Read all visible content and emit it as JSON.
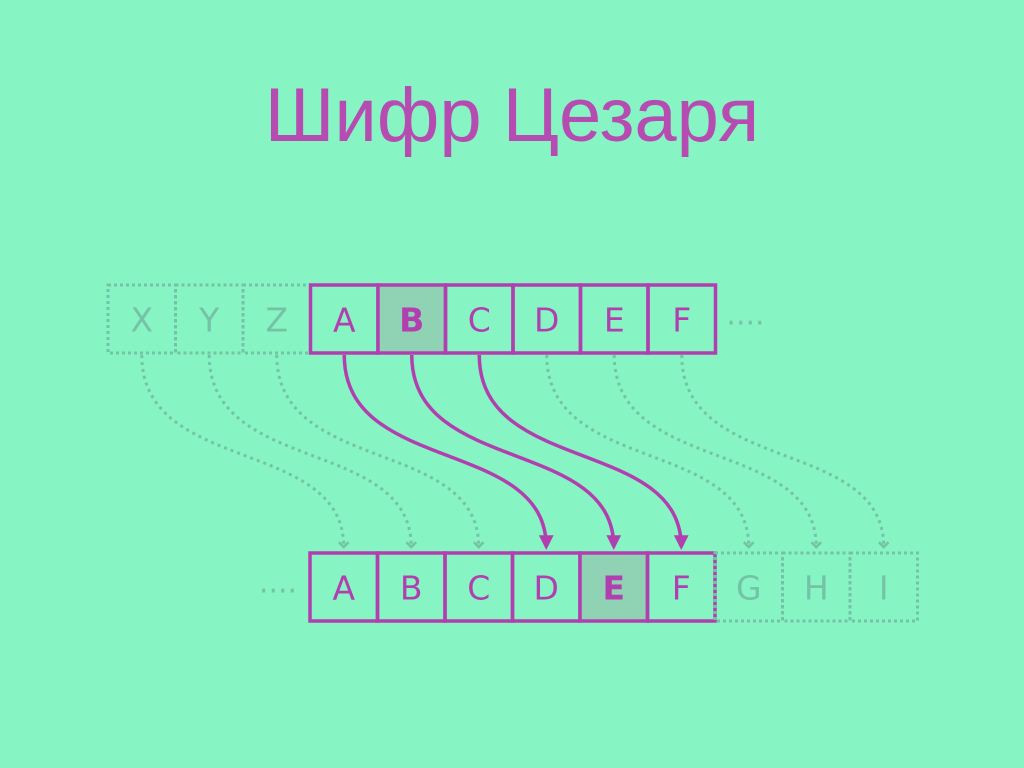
{
  "title": "Шифр Цезаря",
  "colors": {
    "background": "#87F4C3",
    "accent": "#B23FAF",
    "highlight_fill": "#90D2B4",
    "faded": "#74C3A7"
  },
  "top_row": {
    "ghost_letters": [
      "X",
      "Y",
      "Z"
    ],
    "letters": [
      "A",
      "B",
      "C",
      "D",
      "E",
      "F"
    ],
    "highlighted": "B",
    "ellipsis": "...."
  },
  "bottom_row": {
    "ellipsis": "....",
    "letters": [
      "A",
      "B",
      "C",
      "D",
      "E",
      "F"
    ],
    "ghost_letters": [
      "G",
      "H",
      "I"
    ],
    "highlighted": "E"
  },
  "shift": 3
}
